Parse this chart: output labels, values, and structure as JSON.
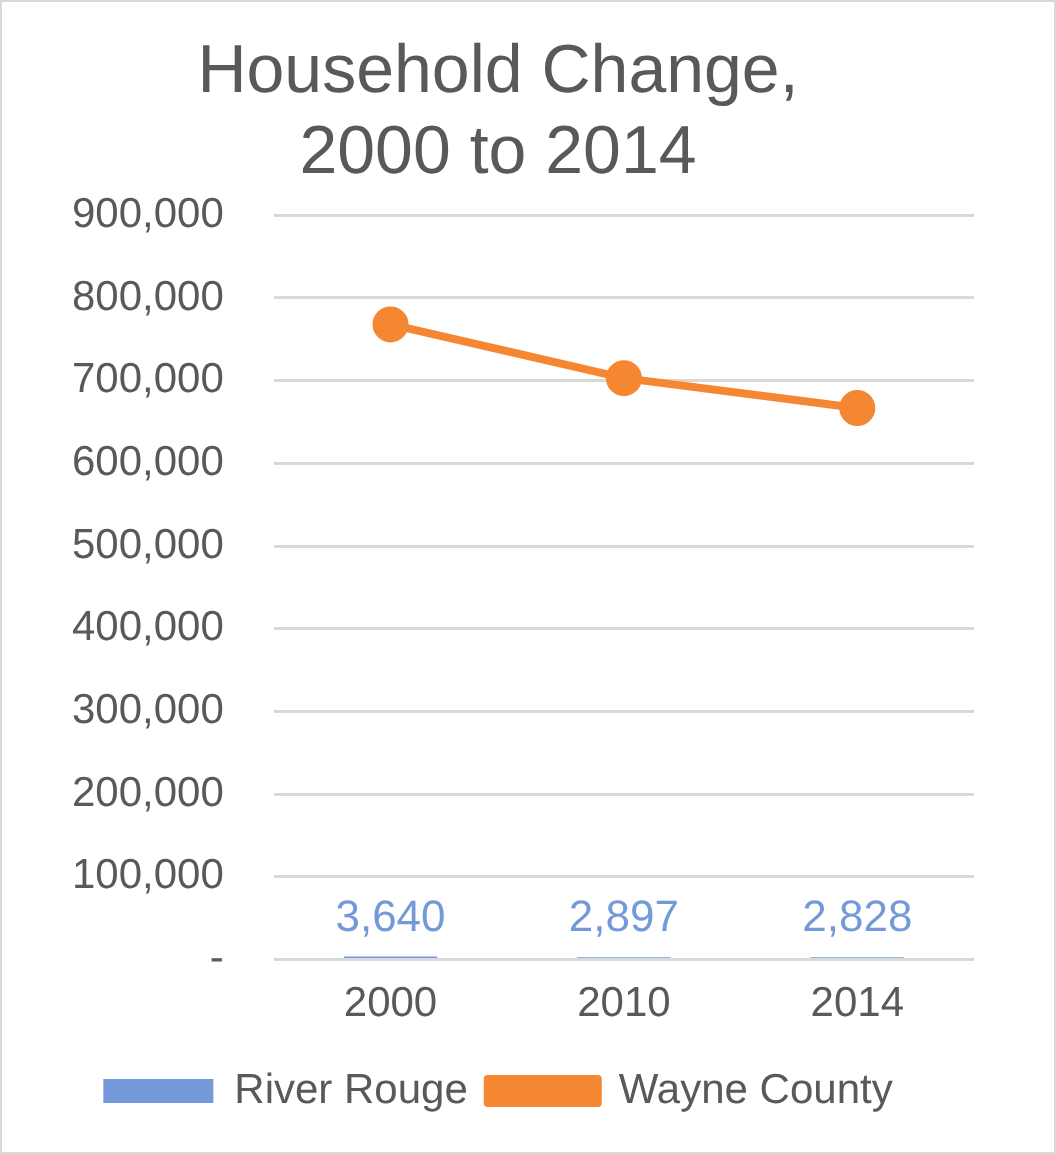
{
  "chart_data": {
    "type": "bar",
    "title": "Household Change,\n2000 to 2014",
    "categories": [
      "2000",
      "2010",
      "2014"
    ],
    "series": [
      {
        "name": "River Rouge",
        "color": "#7399d8",
        "values": [
          3640,
          2897,
          2828
        ],
        "value_labels": [
          "3,640",
          "2,897",
          "2,828"
        ]
      },
      {
        "name": "Wayne County",
        "type": "line",
        "color": "#f58632",
        "values": [
          768000,
          703000,
          667000
        ],
        "marker": "circle"
      }
    ],
    "ylim": [
      0,
      900000
    ],
    "yticks": [
      {
        "value": 0,
        "label": "-"
      },
      {
        "value": 100000,
        "label": "100,000"
      },
      {
        "value": 200000,
        "label": "200,000"
      },
      {
        "value": 300000,
        "label": "300,000"
      },
      {
        "value": 400000,
        "label": "400,000"
      },
      {
        "value": 500000,
        "label": "500,000"
      },
      {
        "value": 600000,
        "label": "600,000"
      },
      {
        "value": 700000,
        "label": "700,000"
      },
      {
        "value": 800000,
        "label": "800,000"
      },
      {
        "value": 900000,
        "label": "900,000"
      }
    ],
    "grid": "y",
    "legend": "bottom"
  }
}
